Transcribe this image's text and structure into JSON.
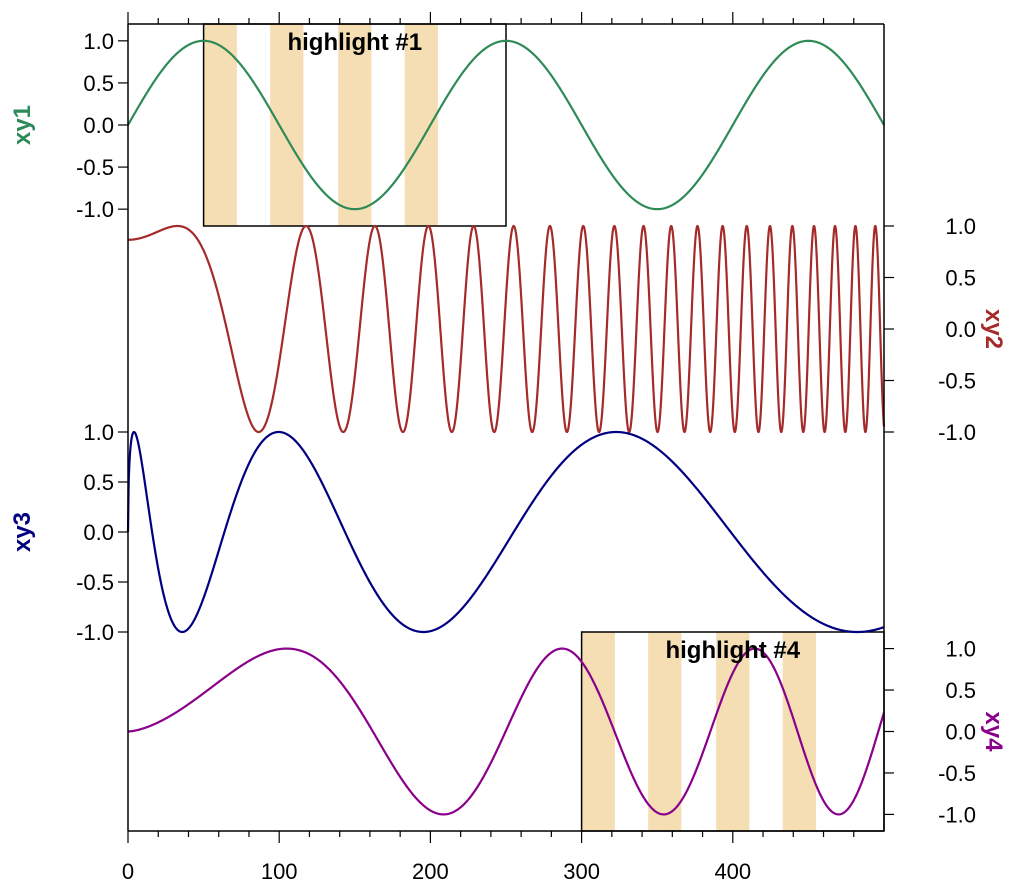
{
  "chart_data": {
    "type": "line",
    "x_range": [
      0,
      500
    ],
    "x_ticks": [
      0,
      100,
      200,
      300,
      400
    ],
    "x_tick_labels": [
      "0",
      "100",
      "200",
      "300",
      "400"
    ],
    "panels": [
      {
        "name": "xy1",
        "ylabel": "xy1",
        "y_axis_side": "left",
        "color": "#2e8b57",
        "ylim": [
          -1.2,
          1.2
        ],
        "y_ticks": [
          1.0,
          0.5,
          0.0,
          -0.5,
          -1.0
        ],
        "y_tick_labels": [
          "1.0",
          "0.5",
          "0.0",
          "-0.5",
          "-1.0"
        ],
        "function": "sin(2*pi*x/200)",
        "highlight": {
          "title": "highlight #1",
          "x_range": [
            50,
            250
          ],
          "bands": [
            [
              50,
              72
            ],
            [
              94,
              116
            ],
            [
              139,
              161
            ],
            [
              183,
              205
            ]
          ],
          "band_color": "#f5deb3"
        }
      },
      {
        "name": "xy2",
        "ylabel": "xy2",
        "y_axis_side": "right",
        "color": "#a52a2a",
        "ylim": [
          -1.0,
          1.0
        ],
        "y_ticks": [
          1.0,
          0.5,
          0.0,
          -0.5,
          -1.0
        ],
        "y_tick_labels": [
          "1.0",
          "0.5",
          "0.0",
          "-0.5",
          "-1.0"
        ],
        "function": "chirp: sin(pi*(x/80)^2 + pi/3)",
        "highlight": null
      },
      {
        "name": "xy3",
        "ylabel": "xy3",
        "y_axis_side": "left",
        "color": "#000080",
        "ylim": [
          -1.0,
          1.0
        ],
        "y_ticks": [
          1.0,
          0.5,
          0.0,
          -0.5,
          -1.0
        ],
        "y_tick_labels": [
          "1.0",
          "0.5",
          "0.0",
          "-0.5",
          "-1.0"
        ],
        "function": "sin(5.6*pi*sqrt(x/500))",
        "highlight": null
      },
      {
        "name": "xy4",
        "ylabel": "xy4",
        "y_axis_side": "right",
        "color": "#8b008b",
        "ylim": [
          -1.2,
          1.2
        ],
        "y_ticks": [
          1.0,
          0.5,
          0.0,
          -0.5,
          -1.0
        ],
        "y_tick_labels": [
          "1.0",
          "0.5",
          "0.0",
          "-0.5",
          "-1.0"
        ],
        "function": "sin(pi*(x/105)^1.6 / 2)",
        "highlight": {
          "title": "highlight #4",
          "x_range": [
            300,
            500
          ],
          "bands": [
            [
              300,
              322
            ],
            [
              344,
              366
            ],
            [
              389,
              411
            ],
            [
              433,
              455
            ]
          ],
          "band_color": "#f5deb3"
        }
      }
    ],
    "grid": false,
    "legend": "none"
  }
}
